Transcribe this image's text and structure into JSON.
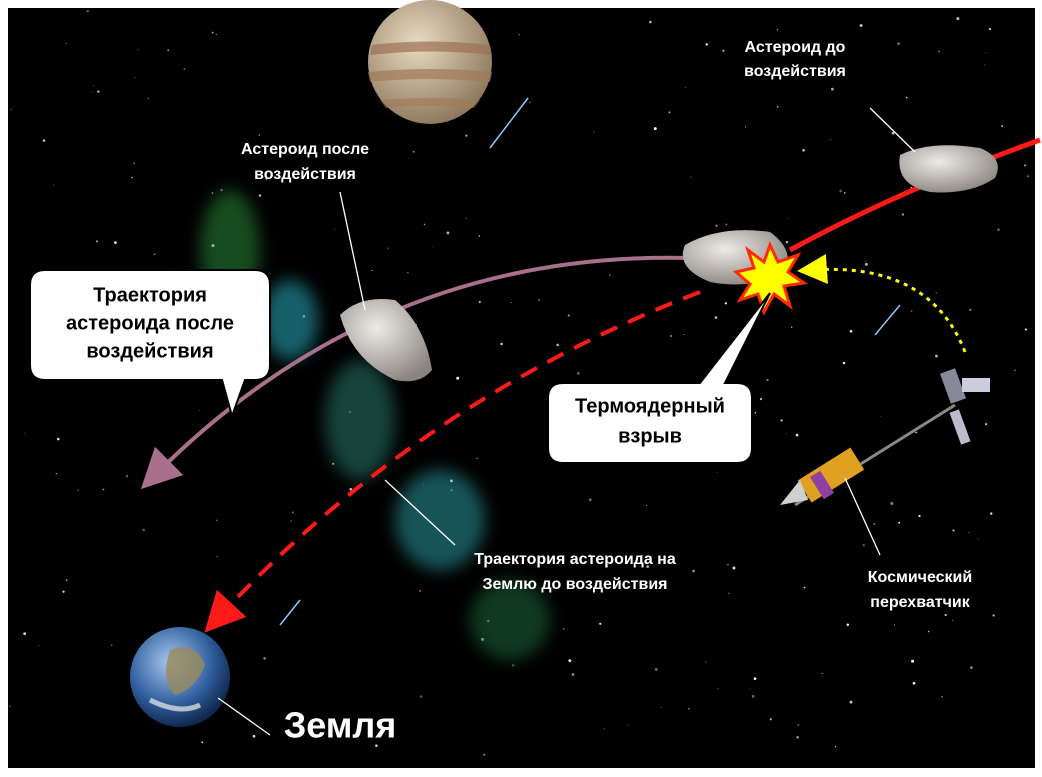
{
  "labels": {
    "asteroid_before": [
      "Астероид  до",
      "воздействия"
    ],
    "asteroid_after": [
      "Астероид  после",
      "воздействия"
    ],
    "trajectory_after": [
      "Траектория",
      "астероида после",
      "воздействия"
    ],
    "explosion": [
      "Термоядерный",
      "взрыв"
    ],
    "trajectory_before": [
      "Траектория астероида на",
      "Землю до воздействия"
    ],
    "interceptor": [
      "Космический",
      "перехватчик"
    ],
    "earth": "Земля"
  }
}
